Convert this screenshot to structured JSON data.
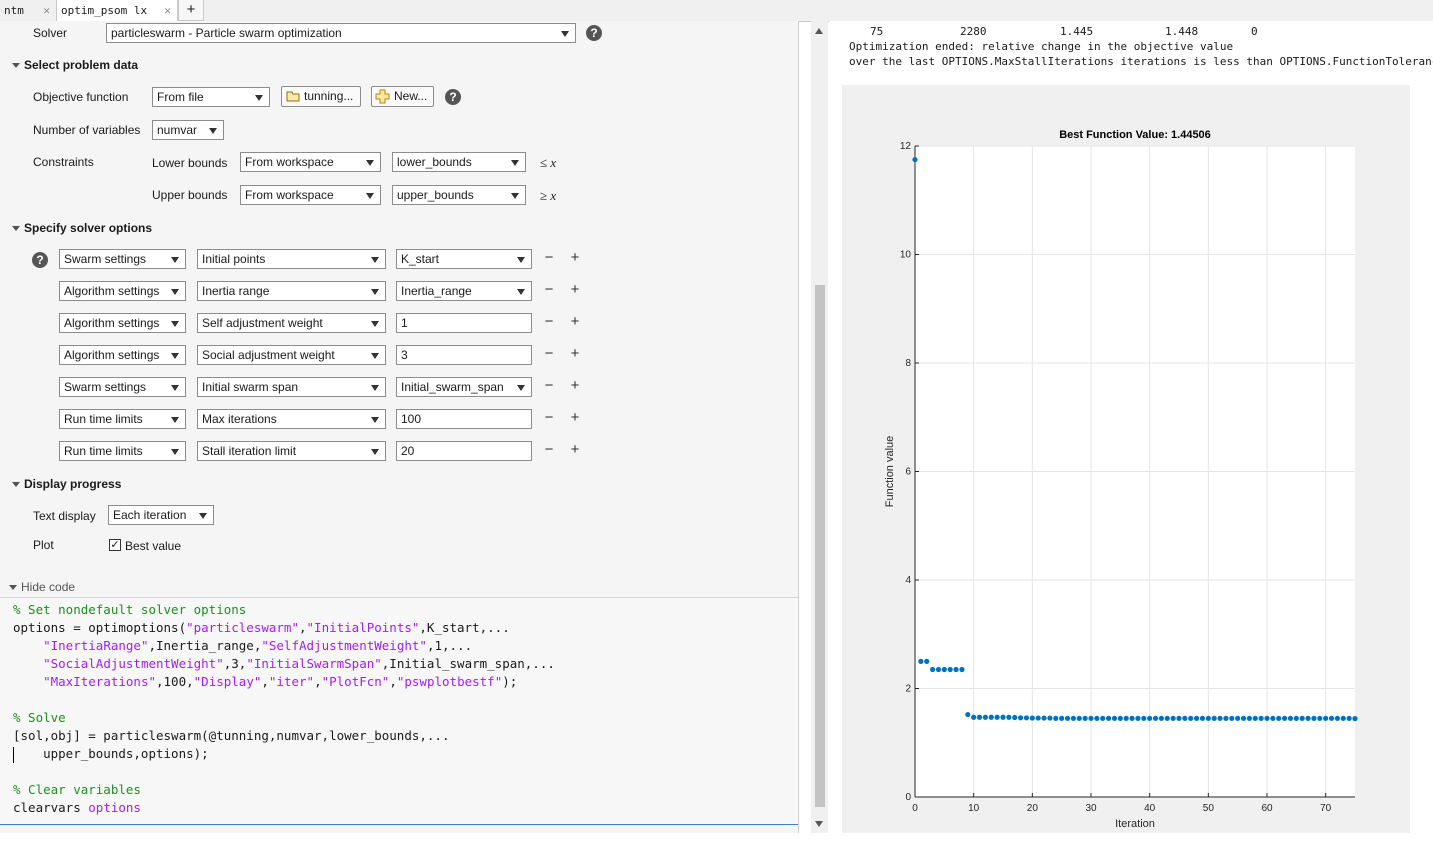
{
  "tabs": [
    {
      "label": "ntm",
      "close": "✕"
    },
    {
      "label": "optim_psom lx",
      "close": "✕"
    }
  ],
  "new_tab": "+",
  "solver": {
    "label": "Solver",
    "value": "particleswarm - Particle swarm optimization"
  },
  "problem": {
    "heading": "Select problem data",
    "objective_label": "Objective function",
    "objective_source": "From file",
    "objective_file": "tunning...",
    "new_label": "New...",
    "numvar_label": "Number of variables",
    "numvar_value": "numvar",
    "constraints_label": "Constraints",
    "lower_label": "Lower bounds",
    "lower_source": "From workspace",
    "lower_value": "lower_bounds",
    "lower_cmp": "≤ x",
    "upper_label": "Upper bounds",
    "upper_source": "From workspace",
    "upper_value": "upper_bounds",
    "upper_cmp": "≥ x"
  },
  "solver_options": {
    "heading": "Specify solver options",
    "rows": [
      {
        "category": "Swarm settings",
        "option": "Initial points",
        "value": "K_start",
        "value_type": "dropdown"
      },
      {
        "category": "Algorithm settings",
        "option": "Inertia range",
        "value": "Inertia_range",
        "value_type": "dropdown"
      },
      {
        "category": "Algorithm settings",
        "option": "Self adjustment weight",
        "value": "1",
        "value_type": "text"
      },
      {
        "category": "Algorithm settings",
        "option": "Social adjustment weight",
        "value": "3",
        "value_type": "text"
      },
      {
        "category": "Swarm settings",
        "option": "Initial swarm span",
        "value": "Initial_swarm_span",
        "value_type": "dropdown"
      },
      {
        "category": "Run time limits",
        "option": "Max iterations",
        "value": "100",
        "value_type": "text"
      },
      {
        "category": "Run time limits",
        "option": "Stall iteration limit",
        "value": "20",
        "value_type": "text"
      }
    ],
    "minus": "−",
    "plus": "+"
  },
  "display": {
    "heading": "Display progress",
    "text_label": "Text display",
    "text_value": "Each iteration",
    "plot_label": "Plot",
    "plot_option": "Best value",
    "plot_checked": true
  },
  "code": {
    "toggle": "Hide code",
    "lines": [
      [
        {
          "t": "% Set nondefault solver options",
          "c": "cm"
        }
      ],
      [
        {
          "t": "options = optimoptions(",
          "c": ""
        },
        {
          "t": "\"particleswarm\"",
          "c": "st"
        },
        {
          "t": ",",
          "c": ""
        },
        {
          "t": "\"InitialPoints\"",
          "c": "st"
        },
        {
          "t": ",K_start,...",
          "c": ""
        }
      ],
      [
        {
          "t": "    ",
          "c": ""
        },
        {
          "t": "\"InertiaRange\"",
          "c": "st"
        },
        {
          "t": ",Inertia_range,",
          "c": ""
        },
        {
          "t": "\"SelfAdjustmentWeight\"",
          "c": "st"
        },
        {
          "t": ",1,...",
          "c": ""
        }
      ],
      [
        {
          "t": "    ",
          "c": ""
        },
        {
          "t": "\"SocialAdjustmentWeight\"",
          "c": "st"
        },
        {
          "t": ",3,",
          "c": ""
        },
        {
          "t": "\"InitialSwarmSpan\"",
          "c": "st"
        },
        {
          "t": ",Initial_swarm_span,...",
          "c": ""
        }
      ],
      [
        {
          "t": "    ",
          "c": ""
        },
        {
          "t": "\"MaxIterations\"",
          "c": "st"
        },
        {
          "t": ",100,",
          "c": ""
        },
        {
          "t": "\"Display\"",
          "c": "st"
        },
        {
          "t": ",",
          "c": ""
        },
        {
          "t": "\"iter\"",
          "c": "st"
        },
        {
          "t": ",",
          "c": ""
        },
        {
          "t": "\"PlotFcn\"",
          "c": "st"
        },
        {
          "t": ",",
          "c": ""
        },
        {
          "t": "\"pswplotbestf\"",
          "c": "st"
        },
        {
          "t": ");",
          "c": ""
        }
      ],
      [],
      [
        {
          "t": "% Solve",
          "c": "cm"
        }
      ],
      [
        {
          "t": "[sol,obj] = particleswarm(@tunning,numvar,lower_bounds,...",
          "c": ""
        }
      ],
      [
        {
          "t": "    upper_bounds,options);",
          "c": ""
        }
      ],
      [],
      [
        {
          "t": "% Clear variables",
          "c": "cm"
        }
      ],
      [
        {
          "t": "clearvars ",
          "c": ""
        },
        {
          "t": "options",
          "c": "st"
        }
      ]
    ]
  },
  "output": {
    "iter_row": [
      "75",
      "2280",
      "1.445",
      "1.448",
      "0"
    ],
    "line1": "Optimization ended: relative change in the objective value",
    "line2": "over the last OPTIONS.MaxStallIterations iterations is less than OPTIONS.FunctionTolerance."
  },
  "colors": {
    "marker": "#0072bd",
    "grid": "#e6e6e6",
    "figure_bg": "#f0f0f0"
  },
  "chart_data": {
    "type": "scatter",
    "title": "Best Function Value: 1.44506",
    "xlabel": "Iteration",
    "ylabel": "Function value",
    "xlim": [
      0,
      75
    ],
    "ylim": [
      0,
      12
    ],
    "xticks": [
      0,
      10,
      20,
      30,
      40,
      50,
      60,
      70
    ],
    "yticks": [
      0,
      2,
      4,
      6,
      8,
      10,
      12
    ],
    "grid": true,
    "series": [
      {
        "x": [
          0,
          1,
          2,
          3,
          4,
          5,
          6,
          7,
          8,
          9,
          10,
          11,
          12,
          13,
          14,
          15,
          16,
          17,
          18,
          19,
          20,
          21,
          22,
          23,
          24,
          25,
          26,
          27,
          28,
          29,
          30,
          31,
          32,
          33,
          34,
          35,
          36,
          37,
          38,
          39,
          40,
          41,
          42,
          43,
          44,
          45,
          46,
          47,
          48,
          49,
          50,
          51,
          52,
          53,
          54,
          55,
          56,
          57,
          58,
          59,
          60,
          61,
          62,
          63,
          64,
          65,
          66,
          67,
          68,
          69,
          70,
          71,
          72,
          73,
          74,
          75
        ],
        "y": [
          11.75,
          2.5,
          2.5,
          2.35,
          2.35,
          2.35,
          2.35,
          2.35,
          2.35,
          1.52,
          1.47,
          1.47,
          1.47,
          1.47,
          1.47,
          1.47,
          1.47,
          1.465,
          1.46,
          1.46,
          1.455,
          1.455,
          1.455,
          1.455,
          1.45,
          1.45,
          1.45,
          1.45,
          1.45,
          1.45,
          1.45,
          1.45,
          1.45,
          1.45,
          1.45,
          1.45,
          1.45,
          1.45,
          1.45,
          1.45,
          1.45,
          1.45,
          1.45,
          1.45,
          1.45,
          1.45,
          1.45,
          1.45,
          1.45,
          1.45,
          1.45,
          1.45,
          1.45,
          1.45,
          1.45,
          1.45,
          1.45,
          1.45,
          1.45,
          1.45,
          1.45,
          1.45,
          1.45,
          1.45,
          1.45,
          1.45,
          1.45,
          1.45,
          1.45,
          1.45,
          1.45,
          1.45,
          1.45,
          1.45,
          1.45,
          1.445
        ]
      }
    ]
  }
}
